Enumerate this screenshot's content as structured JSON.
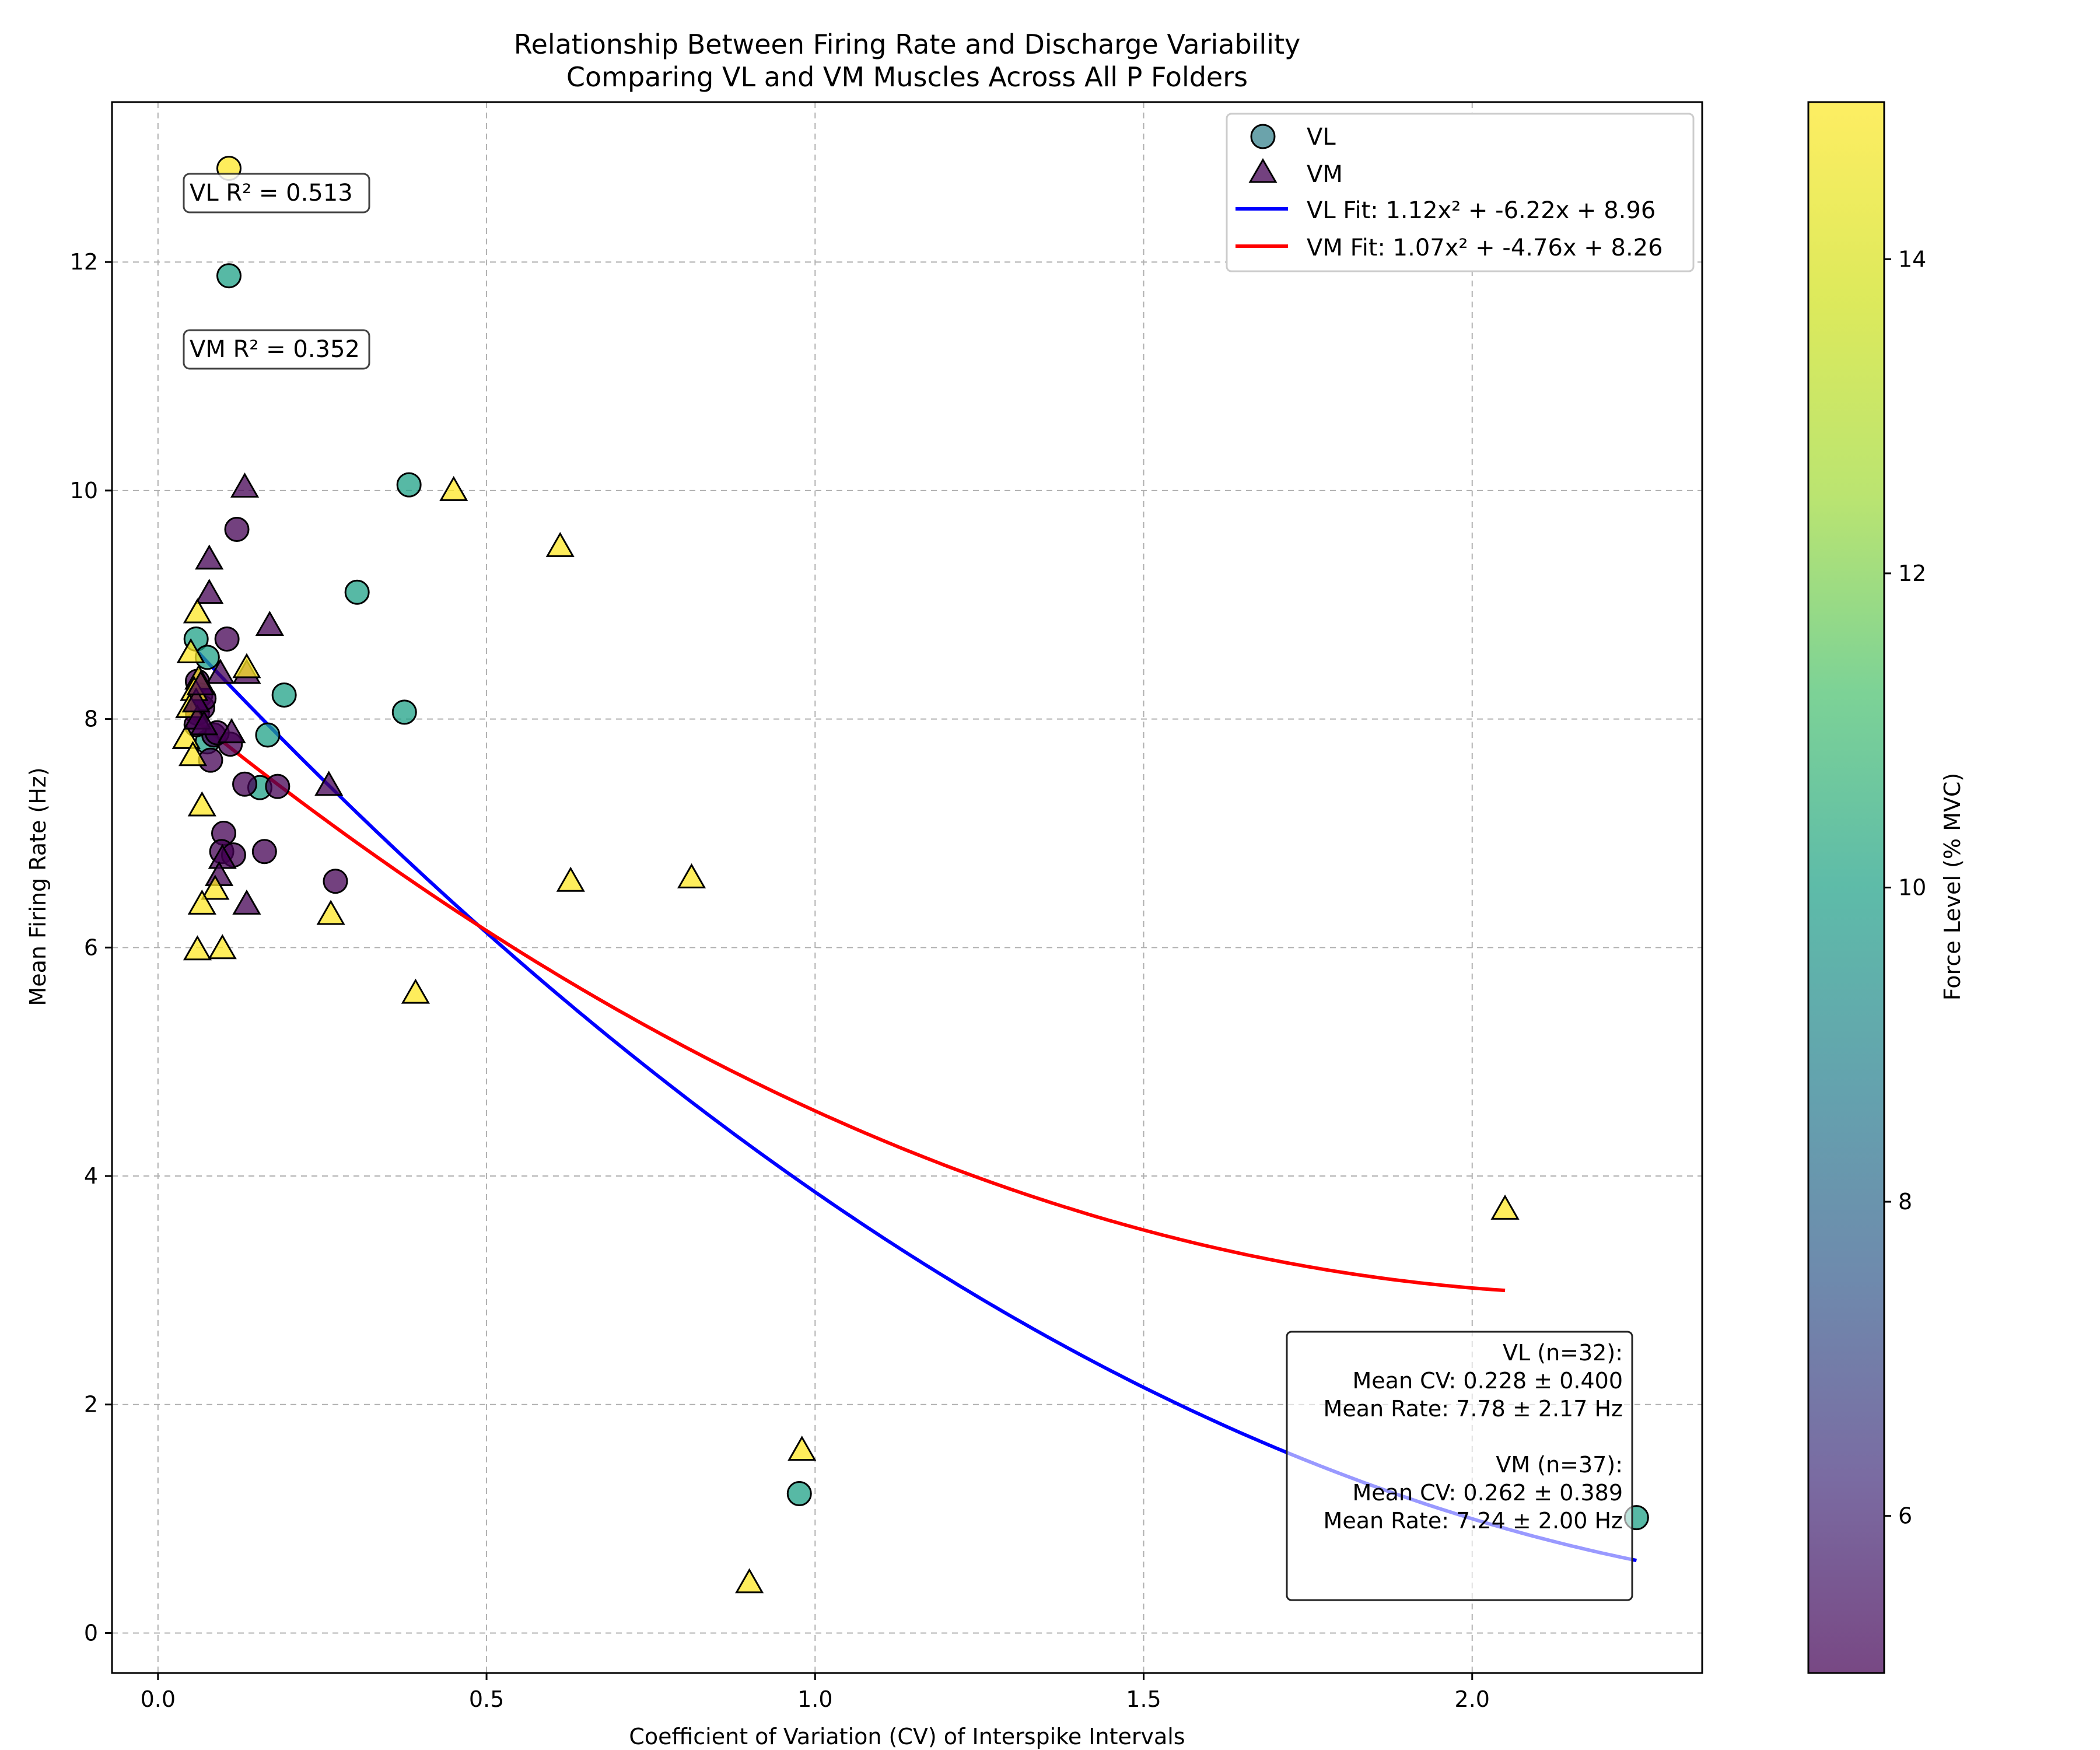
{
  "chart_data": {
    "type": "scatter",
    "title": "Relationship Between Firing Rate and Discharge Variability",
    "subtitle": "Comparing VL and VM Muscles Across All P Folders",
    "xlabel": "Coefficient of Variation (CV) of Interspike Intervals",
    "ylabel": "Mean Firing Rate (Hz)",
    "xlim": [
      -0.07,
      2.35
    ],
    "ylim": [
      -0.35,
      13.4
    ],
    "xticks": [
      "0.0",
      "0.5",
      "1.0",
      "1.5",
      "2.0"
    ],
    "yticks": [
      "0",
      "2",
      "4",
      "6",
      "8",
      "10",
      "12"
    ],
    "grid": true,
    "legend_position": "top-right",
    "colorbar": {
      "label": "Force Level (% MVC)",
      "range": [
        5,
        15
      ],
      "ticks": [
        "6",
        "8",
        "10",
        "12",
        "14"
      ],
      "colormap": "viridis"
    },
    "series": [
      {
        "name": "VL",
        "marker": "circle",
        "points": [
          {
            "x": 0.108,
            "y": 12.82,
            "force": 15
          },
          {
            "x": 0.108,
            "y": 11.88,
            "force": 10
          },
          {
            "x": 0.382,
            "y": 10.05,
            "force": 10
          },
          {
            "x": 0.303,
            "y": 9.11,
            "force": 10
          },
          {
            "x": 0.192,
            "y": 8.21,
            "force": 10
          },
          {
            "x": 0.375,
            "y": 8.06,
            "force": 10
          },
          {
            "x": 0.167,
            "y": 7.86,
            "force": 10
          },
          {
            "x": 0.155,
            "y": 7.4,
            "force": 10
          },
          {
            "x": 0.058,
            "y": 8.7,
            "force": 10
          },
          {
            "x": 0.075,
            "y": 8.54,
            "force": 10
          },
          {
            "x": 0.075,
            "y": 7.8,
            "force": 10
          },
          {
            "x": 0.976,
            "y": 1.22,
            "force": 10
          },
          {
            "x": 2.25,
            "y": 1.01,
            "force": 10
          },
          {
            "x": 0.12,
            "y": 9.66,
            "force": 5
          },
          {
            "x": 0.105,
            "y": 8.7,
            "force": 5
          },
          {
            "x": 0.06,
            "y": 8.33,
            "force": 5
          },
          {
            "x": 0.065,
            "y": 8.21,
            "force": 5
          },
          {
            "x": 0.085,
            "y": 7.86,
            "force": 5
          },
          {
            "x": 0.08,
            "y": 7.64,
            "force": 5
          },
          {
            "x": 0.132,
            "y": 7.43,
            "force": 5
          },
          {
            "x": 0.182,
            "y": 7.41,
            "force": 5
          },
          {
            "x": 0.1,
            "y": 7.0,
            "force": 5
          },
          {
            "x": 0.097,
            "y": 6.84,
            "force": 5
          },
          {
            "x": 0.115,
            "y": 6.81,
            "force": 5
          },
          {
            "x": 0.162,
            "y": 6.84,
            "force": 5
          },
          {
            "x": 0.27,
            "y": 6.58,
            "force": 5
          },
          {
            "x": 0.06,
            "y": 8.05,
            "force": 5
          },
          {
            "x": 0.068,
            "y": 8.1,
            "force": 5
          },
          {
            "x": 0.058,
            "y": 7.95,
            "force": 5
          },
          {
            "x": 0.11,
            "y": 7.78,
            "force": 5
          },
          {
            "x": 0.09,
            "y": 7.88,
            "force": 5
          },
          {
            "x": 0.07,
            "y": 8.18,
            "force": 5
          }
        ]
      },
      {
        "name": "VM",
        "marker": "triangle",
        "points": [
          {
            "x": 0.132,
            "y": 10.03,
            "force": 5
          },
          {
            "x": 0.078,
            "y": 9.4,
            "force": 5
          },
          {
            "x": 0.078,
            "y": 9.1,
            "force": 5
          },
          {
            "x": 0.17,
            "y": 8.82,
            "force": 5
          },
          {
            "x": 0.095,
            "y": 8.4,
            "force": 5
          },
          {
            "x": 0.135,
            "y": 8.4,
            "force": 5
          },
          {
            "x": 0.112,
            "y": 7.88,
            "force": 5
          },
          {
            "x": 0.26,
            "y": 7.42,
            "force": 5
          },
          {
            "x": 0.098,
            "y": 6.78,
            "force": 5
          },
          {
            "x": 0.093,
            "y": 6.63,
            "force": 5
          },
          {
            "x": 0.135,
            "y": 6.38,
            "force": 5
          },
          {
            "x": 0.45,
            "y": 10.0,
            "force": 15
          },
          {
            "x": 0.612,
            "y": 9.51,
            "force": 15
          },
          {
            "x": 0.06,
            "y": 8.93,
            "force": 15
          },
          {
            "x": 0.135,
            "y": 8.45,
            "force": 15
          },
          {
            "x": 0.05,
            "y": 8.58,
            "force": 15
          },
          {
            "x": 0.062,
            "y": 8.35,
            "force": 15
          },
          {
            "x": 0.055,
            "y": 8.25,
            "force": 15
          },
          {
            "x": 0.048,
            "y": 8.1,
            "force": 15
          },
          {
            "x": 0.043,
            "y": 7.83,
            "force": 15
          },
          {
            "x": 0.053,
            "y": 7.68,
            "force": 15
          },
          {
            "x": 0.067,
            "y": 7.24,
            "force": 15
          },
          {
            "x": 0.087,
            "y": 6.51,
            "force": 15
          },
          {
            "x": 0.067,
            "y": 6.38,
            "force": 15
          },
          {
            "x": 0.06,
            "y": 5.98,
            "force": 15
          },
          {
            "x": 0.098,
            "y": 5.99,
            "force": 15
          },
          {
            "x": 0.263,
            "y": 6.29,
            "force": 15
          },
          {
            "x": 0.628,
            "y": 6.58,
            "force": 15
          },
          {
            "x": 0.812,
            "y": 6.61,
            "force": 15
          },
          {
            "x": 0.392,
            "y": 5.6,
            "force": 15
          },
          {
            "x": 2.05,
            "y": 3.71,
            "force": 15
          },
          {
            "x": 0.98,
            "y": 1.6,
            "force": 15
          },
          {
            "x": 0.9,
            "y": 0.44,
            "force": 15
          },
          {
            "x": 0.06,
            "y": 8.0,
            "force": 5
          },
          {
            "x": 0.07,
            "y": 7.95,
            "force": 5
          },
          {
            "x": 0.058,
            "y": 8.15,
            "force": 5
          },
          {
            "x": 0.065,
            "y": 8.3,
            "force": 5
          }
        ]
      }
    ],
    "fits": [
      {
        "name": "VL Fit: 1.12x² + -6.22x + 8.96",
        "color": "#0000ff",
        "coeffs": [
          1.12,
          -6.22,
          8.96
        ],
        "x_range": [
          0.058,
          2.25
        ]
      },
      {
        "name": "VM Fit: 1.07x² + -4.76x + 8.26",
        "color": "#ff0000",
        "coeffs": [
          1.07,
          -4.76,
          8.26
        ],
        "x_range": [
          0.043,
          2.05
        ]
      }
    ],
    "annotations": {
      "vl_r2": "VL R² = 0.513",
      "vm_r2": "VM R² = 0.352",
      "stats_lines": [
        "VL (n=32):",
        "Mean CV: 0.228 ± 0.400",
        "Mean Rate: 7.78 ± 2.17 Hz",
        "",
        "VM (n=37):",
        "Mean CV: 0.262 ± 0.389",
        "Mean Rate: 7.24 ± 2.00 Hz"
      ]
    }
  }
}
